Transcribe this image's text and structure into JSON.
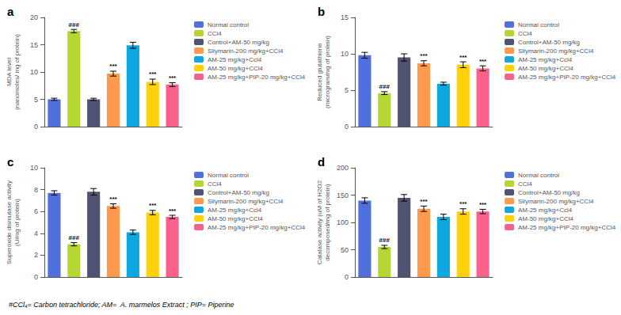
{
  "chart_data": [
    {
      "type": "bar",
      "title": "a",
      "ylabel": "MDA level\n(nanomoles/ mg of protein)",
      "categories": [
        "Normal control",
        "CCl4",
        "Control+AM-50 mg/kg",
        "Silymarin-200 mg/kg+CCl4",
        "AM-25 mg/kg+Ccl4",
        "AM-50 mg/kg+CCl4",
        "AM-25 mg/kg+PIP-20 mg/kg+CCl4"
      ],
      "values": [
        5.0,
        17.5,
        5.0,
        9.7,
        14.9,
        8.2,
        7.7
      ],
      "errors": [
        0.2,
        0.3,
        0.2,
        0.45,
        0.55,
        0.5,
        0.35
      ],
      "annotations": [
        null,
        "###",
        null,
        "***",
        null,
        "***",
        "***"
      ],
      "ylim": [
        0,
        20
      ],
      "yticks": [
        0,
        5,
        10,
        15,
        20
      ],
      "grid": false,
      "legend": "right",
      "tick_labels": "y"
    },
    {
      "type": "bar",
      "title": "b",
      "ylabel": "Reduced glutathione\n(microgram/mg of protein)",
      "categories": [
        "Normal control",
        "CCl4",
        "Control+AM-50 mg/kg",
        "Silymarin-200 mg/kg+CCl4",
        "AM-25 mg/kg+Ccl4",
        "AM-50 mg/kg+CCl4",
        "AM-25 mg/kg+PIP-20 mg/kg+CCl4"
      ],
      "values": [
        9.8,
        4.6,
        9.5,
        8.7,
        5.9,
        8.5,
        8.0
      ],
      "errors": [
        0.4,
        0.2,
        0.5,
        0.35,
        0.2,
        0.4,
        0.35
      ],
      "annotations": [
        null,
        "###",
        null,
        "***",
        null,
        "***",
        "***"
      ],
      "ylim": [
        0,
        15
      ],
      "yticks": [
        0,
        5,
        10,
        15
      ],
      "grid": false,
      "legend": "right",
      "tick_labels": "y"
    },
    {
      "type": "bar",
      "title": "c",
      "ylabel": "Superoxide dismutase activity\n(U/mg of protein)",
      "categories": [
        "Normal control",
        "CCl4",
        "Control+AM-50 mg/kg",
        "Silymarin-200 mg/kg+CCl4",
        "AM-25 mg/kg+Ccl4",
        "AM-50 mg/kg+CCl4",
        "AM-25 mg/kg+PIP-20 mg/kg+CCl4"
      ],
      "values": [
        7.7,
        3.0,
        7.8,
        6.5,
        4.1,
        5.9,
        5.5
      ],
      "errors": [
        0.2,
        0.15,
        0.3,
        0.2,
        0.2,
        0.2,
        0.15
      ],
      "annotations": [
        null,
        "###",
        null,
        "***",
        null,
        "***",
        "***"
      ],
      "ylim": [
        0,
        10
      ],
      "yticks": [
        0,
        2,
        4,
        6,
        8,
        10
      ],
      "grid": false,
      "legend": "right",
      "tick_labels": "y"
    },
    {
      "type": "bar",
      "title": "d",
      "ylabel": "Catalase activity (uM of H2O2\ndecomposed/mg of protein)",
      "categories": [
        "Normal control",
        "CCl4",
        "Control+AM-50 mg/kg",
        "Silymarin-200 mg/kg+CCl4",
        "AM-25 mg/kg+Ccl4",
        "AM-50 mg/kg+CCl4",
        "AM-25 mg/kg+PIP-20 mg/kg+CCl4"
      ],
      "values": [
        140.0,
        55.0,
        145.0,
        125.0,
        110.0,
        120.0,
        120.0
      ],
      "errors": [
        5.0,
        3.0,
        6.0,
        5.0,
        5.0,
        5.0,
        4.0
      ],
      "annotations": [
        null,
        "###",
        null,
        "***",
        null,
        "***",
        "***"
      ],
      "ylim": [
        0,
        200
      ],
      "yticks": [
        0,
        50,
        100,
        150,
        200
      ],
      "grid": false,
      "legend": "right",
      "tick_labels": "y"
    }
  ],
  "footnote": "#CCl₄= Carbon tetrachloride; AM=  A. marmelos Extract ; PIP= Piperine"
}
